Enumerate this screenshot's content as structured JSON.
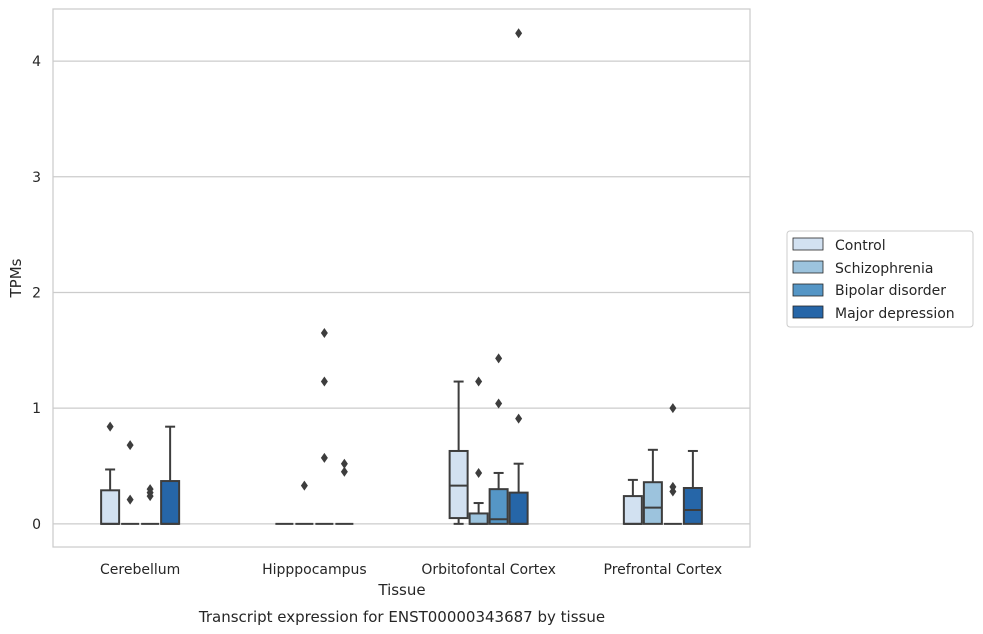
{
  "chart_data": {
    "type": "boxplot",
    "caption": "Transcript expression for ENST00000343687 by tissue",
    "xlabel": "Tissue",
    "ylabel": "TPMs",
    "ylim": [
      -0.2,
      4.45
    ],
    "yticks": [
      0,
      1,
      2,
      3,
      4
    ],
    "grid": "horizontal",
    "legend_position": "right",
    "categories": [
      "Cerebellum",
      "Hipppocampus",
      "Orbitofontal Cortex",
      "Prefrontal Cortex"
    ],
    "series": [
      {
        "name": "Control",
        "color": "#d2e1f1",
        "boxes": [
          {
            "whisker_low": 0,
            "q1": 0,
            "median": 0,
            "q3": 0.29,
            "whisker_high": 0.47,
            "outliers": [
              0.84
            ]
          },
          {
            "whisker_low": 0,
            "q1": 0,
            "median": 0,
            "q3": 0,
            "whisker_high": 0,
            "outliers": []
          },
          {
            "whisker_low": 0,
            "q1": 0.05,
            "median": 0.33,
            "q3": 0.63,
            "whisker_high": 1.23,
            "outliers": []
          },
          {
            "whisker_low": 0,
            "q1": 0,
            "median": 0,
            "q3": 0.24,
            "whisker_high": 0.38,
            "outliers": []
          }
        ]
      },
      {
        "name": "Schizophrenia",
        "color": "#9cc3dd",
        "boxes": [
          {
            "whisker_low": 0,
            "q1": 0,
            "median": 0,
            "q3": 0,
            "whisker_high": 0,
            "outliers": [
              0.68,
              0.21
            ]
          },
          {
            "whisker_low": 0,
            "q1": 0,
            "median": 0,
            "q3": 0,
            "whisker_high": 0,
            "outliers": [
              0.33
            ]
          },
          {
            "whisker_low": 0,
            "q1": 0,
            "median": 0,
            "q3": 0.09,
            "whisker_high": 0.18,
            "outliers": [
              1.23,
              0.44
            ]
          },
          {
            "whisker_low": 0,
            "q1": 0,
            "median": 0.14,
            "q3": 0.36,
            "whisker_high": 0.64,
            "outliers": []
          }
        ]
      },
      {
        "name": "Bipolar disorder",
        "color": "#5596c6",
        "boxes": [
          {
            "whisker_low": 0,
            "q1": 0,
            "median": 0,
            "q3": 0,
            "whisker_high": 0,
            "outliers": [
              0.3,
              0.27,
              0.24
            ]
          },
          {
            "whisker_low": 0,
            "q1": 0,
            "median": 0,
            "q3": 0,
            "whisker_high": 0,
            "outliers": [
              1.65,
              1.23,
              0.57
            ]
          },
          {
            "whisker_low": 0,
            "q1": 0,
            "median": 0.04,
            "q3": 0.3,
            "whisker_high": 0.44,
            "outliers": [
              1.43,
              1.04
            ]
          },
          {
            "whisker_low": 0,
            "q1": 0,
            "median": 0,
            "q3": 0,
            "whisker_high": 0,
            "outliers": [
              1.0,
              0.32,
              0.28
            ]
          }
        ]
      },
      {
        "name": "Major depression",
        "color": "#2666a8",
        "boxes": [
          {
            "whisker_low": 0,
            "q1": 0,
            "median": 0,
            "q3": 0.37,
            "whisker_high": 0.84,
            "outliers": []
          },
          {
            "whisker_low": 0,
            "q1": 0,
            "median": 0,
            "q3": 0,
            "whisker_high": 0,
            "outliers": [
              0.52,
              0.45
            ]
          },
          {
            "whisker_low": 0,
            "q1": 0,
            "median": 0,
            "q3": 0.27,
            "whisker_high": 0.52,
            "outliers": [
              4.24,
              0.91
            ]
          },
          {
            "whisker_low": 0,
            "q1": 0,
            "median": 0.12,
            "q3": 0.31,
            "whisker_high": 0.63,
            "outliers": []
          }
        ]
      }
    ]
  }
}
